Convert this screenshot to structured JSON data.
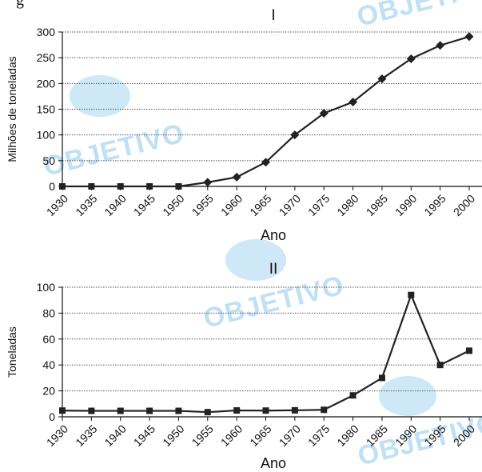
{
  "top_fragment": "g",
  "watermark_text": "OBJETIVO",
  "colors": {
    "series": "#222222",
    "grid": "#555555",
    "watermark": "#bfe0f5"
  },
  "chart_data": [
    {
      "type": "line",
      "title": "I",
      "xlabel": "Ano",
      "ylabel": "Milhões de toneladas",
      "categories": [
        "1930",
        "1935",
        "1940",
        "1945",
        "1950",
        "1955",
        "1960",
        "1965",
        "1970",
        "1975",
        "1980",
        "1985",
        "1990",
        "1995",
        "2000"
      ],
      "x": [
        1930,
        1935,
        1940,
        1945,
        1950,
        1955,
        1960,
        1965,
        1970,
        1975,
        1980,
        1985,
        1990,
        1995,
        2000
      ],
      "series": [
        {
          "x": [
            1930,
            1935,
            1940,
            1945,
            1950,
            1955,
            1960,
            1965,
            1970,
            1975,
            1980,
            1985,
            1990,
            1995,
            2000
          ],
          "values": [
            0,
            0,
            0,
            0,
            0,
            8,
            18,
            47,
            100,
            142,
            164,
            209,
            248,
            274,
            291
          ]
        }
      ],
      "ylim": [
        0,
        300
      ],
      "yticks": [
        0,
        50,
        100,
        150,
        200,
        250,
        300
      ],
      "grid": true
    },
    {
      "type": "line",
      "title": "II",
      "xlabel": "Ano",
      "ylabel": "Toneladas",
      "categories": [
        "1930",
        "1935",
        "1940",
        "1945",
        "1950",
        "1955",
        "1960",
        "1965",
        "1970",
        "1975",
        "1980",
        "1985",
        "1990",
        "1995",
        "2000"
      ],
      "x": [
        1930,
        1935,
        1940,
        1945,
        1950,
        1955,
        1960,
        1965,
        1970,
        1975,
        1980,
        1985,
        1990,
        1995,
        2000
      ],
      "series": [
        {
          "x": [
            1930,
            1935,
            1940,
            1945,
            1950,
            1955,
            1960,
            1965,
            1970,
            1975,
            1980,
            1985,
            1990,
            1995,
            2000
          ],
          "values": [
            4.8,
            4.6,
            4.6,
            4.6,
            4.6,
            3.6,
            4.9,
            4.8,
            5.0,
            5.4,
            16.5,
            30,
            94,
            40,
            51
          ]
        }
      ],
      "ylim": [
        0,
        100
      ],
      "yticks": [
        0,
        20,
        40,
        60,
        80,
        100
      ],
      "grid": true
    }
  ]
}
